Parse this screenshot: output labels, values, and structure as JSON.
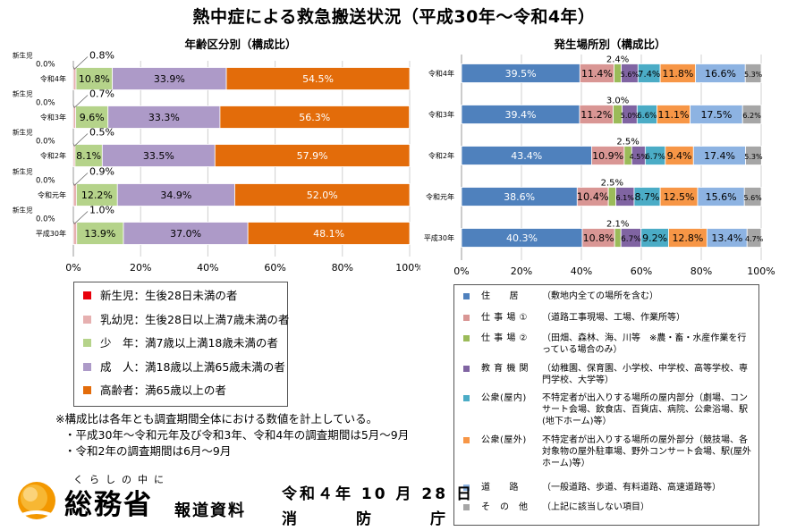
{
  "title": "熱中症による救急搬送状況（平成30年～令和4年）",
  "colors": {
    "newborn": "#e8000b",
    "infant": "#e6b0b0",
    "youth": "#b5d38a",
    "adult": "#ad9ac8",
    "elderly": "#e36c0a",
    "residence": "#4f81bd",
    "work1": "#d99694",
    "work2": "#9bbb59",
    "education": "#8064a2",
    "public_indoor": "#4bacc6",
    "public_outdoor": "#f79646",
    "road": "#8db3e2",
    "other": "#a6a6a6"
  },
  "chart_data": [
    {
      "type": "bar",
      "orientation": "horizontal-stacked",
      "title": "年齢区分別（構成比）",
      "categories": [
        "令和4年",
        "令和3年",
        "令和2年",
        "令和元年",
        "平成30年"
      ],
      "series": [
        {
          "name": "新生児",
          "values": [
            0.0,
            0.0,
            0.0,
            0.0,
            0.0
          ],
          "labels": [
            "0.0%",
            "0.0%",
            "0.0%",
            "0.0%",
            "0.0%"
          ],
          "color_key": "newborn"
        },
        {
          "name": "乳幼児",
          "values": [
            0.8,
            0.7,
            0.5,
            0.9,
            1.0
          ],
          "labels": [
            "0.8%",
            "0.7%",
            "0.5%",
            "0.9%",
            "1.0%"
          ],
          "color_key": "infant"
        },
        {
          "name": "少年",
          "values": [
            10.8,
            9.6,
            8.1,
            12.2,
            13.9
          ],
          "labels": [
            "10.8%",
            "9.6%",
            "8.1%",
            "12.2%",
            "13.9%"
          ],
          "color_key": "youth"
        },
        {
          "name": "成人",
          "values": [
            33.9,
            33.3,
            33.5,
            34.9,
            37.0
          ],
          "labels": [
            "33.9%",
            "33.3%",
            "33.5%",
            "34.9%",
            "37.0%"
          ],
          "color_key": "adult"
        },
        {
          "name": "高齢者",
          "values": [
            54.5,
            56.3,
            57.9,
            52.0,
            48.1
          ],
          "labels": [
            "54.5%",
            "56.3%",
            "57.9%",
            "52.0%",
            "48.1%"
          ],
          "color_key": "elderly"
        }
      ],
      "callout_label": "新生児",
      "xlim": [
        0,
        100
      ],
      "xticks": [
        "0%",
        "20%",
        "40%",
        "60%",
        "80%",
        "100%"
      ]
    },
    {
      "type": "bar",
      "orientation": "horizontal-stacked",
      "title": "発生場所別（構成比）",
      "categories": [
        "令和4年",
        "令和3年",
        "令和2年",
        "令和元年",
        "平成30年"
      ],
      "series": [
        {
          "name": "住居",
          "values": [
            39.5,
            39.4,
            43.4,
            38.6,
            40.3
          ],
          "labels": [
            "39.5%",
            "39.4%",
            "43.4%",
            "38.6%",
            "40.3%"
          ],
          "color_key": "residence"
        },
        {
          "name": "仕事場①",
          "values": [
            11.4,
            11.2,
            10.9,
            10.4,
            10.8
          ],
          "labels": [
            "11.4%",
            "11.2%",
            "10.9%",
            "10.4%",
            "10.8%"
          ],
          "color_key": "work1"
        },
        {
          "name": "仕事場②",
          "values": [
            2.4,
            3.0,
            2.5,
            2.5,
            2.1
          ],
          "labels": [
            "2.4%",
            "3.0%",
            "2.5%",
            "2.5%",
            "2.1%"
          ],
          "color_key": "work2"
        },
        {
          "name": "教育機関",
          "values": [
            5.6,
            5.0,
            4.5,
            6.1,
            6.7
          ],
          "labels": [
            "5.6%",
            "5.0%",
            "4.5%",
            "6.1%",
            "6.7%"
          ],
          "color_key": "education"
        },
        {
          "name": "公衆（屋内）",
          "values": [
            7.4,
            6.6,
            6.7,
            8.7,
            9.2
          ],
          "labels": [
            "7.4%",
            "6.6%",
            "6.7%",
            "8.7%",
            "9.2%"
          ],
          "color_key": "public_indoor"
        },
        {
          "name": "公衆（屋外）",
          "values": [
            11.8,
            11.1,
            9.4,
            12.5,
            12.8
          ],
          "labels": [
            "11.8%",
            "11.1%",
            "9.4%",
            "12.5%",
            "12.8%"
          ],
          "color_key": "public_outdoor"
        },
        {
          "name": "道路",
          "values": [
            16.6,
            17.5,
            17.4,
            15.6,
            13.4
          ],
          "labels": [
            "16.6%",
            "17.5%",
            "17.4%",
            "15.6%",
            "13.4%"
          ],
          "color_key": "road"
        },
        {
          "name": "その他",
          "values": [
            5.3,
            6.2,
            5.3,
            5.6,
            4.7
          ],
          "labels": [
            "5.3%",
            "6.2%",
            "5.3%",
            "5.6%",
            "4.7%"
          ],
          "color_key": "other"
        }
      ],
      "xlim": [
        0,
        100
      ],
      "xticks": [
        "0%",
        "20%",
        "40%",
        "60%",
        "80%",
        "100%"
      ]
    }
  ],
  "legend_age": [
    {
      "label": "新生児：生後28日未満の者",
      "color_key": "newborn"
    },
    {
      "label": "乳幼児：生後28日以上満7歳未満の者",
      "color_key": "infant"
    },
    {
      "label": "少　年：満7歳以上満18歳未満の者",
      "color_key": "youth"
    },
    {
      "label": "成　人：満18歳以上満65歳未満の者",
      "color_key": "adult"
    },
    {
      "label": "高齢者：満65歳以上の者",
      "color_key": "elderly"
    }
  ],
  "legend_place": [
    {
      "name": "住　　居",
      "desc": "（敷地内全ての場所を含む）",
      "color_key": "residence"
    },
    {
      "name": "仕 事 場 ①",
      "desc": "（道路工事現場、工場、作業所等）",
      "color_key": "work1"
    },
    {
      "name": "仕 事 場 ②",
      "desc": "（田畑、森林、海、川等　※農・畜・水産作業を行っている場合のみ）",
      "color_key": "work2"
    },
    {
      "name": "教 育 機 関",
      "desc": "（幼稚園、保育園、小学校、中学校、高等学校、専門学校、大学等）",
      "color_key": "education"
    },
    {
      "name": "公衆(屋内)",
      "desc": "不特定者が出入りする場所の屋内部分（劇場、コンサート会場、飲食店、百貨店、病院、公衆浴場、駅(地下ホーム)等）",
      "color_key": "public_indoor"
    },
    {
      "name": "公衆(屋外)",
      "desc": "不特定者が出入りする場所の屋外部分（競技場、各対象物の屋外駐車場、野外コンサート会場、駅(屋外ホーム)等）",
      "color_key": "public_outdoor"
    },
    {
      "name": "道　　路",
      "desc": "（一般道路、歩道、有料道路、高速道路等）",
      "color_key": "road"
    },
    {
      "name": "そ　の　他",
      "desc": "（上記に該当しない項目）",
      "color_key": "other"
    }
  ],
  "notes": {
    "main": "※構成比は各年とも調査期間全体における数値を計上している。",
    "line1": "・平成30年～令和元年及び令和3年、令和4年の調査期間は5月～9月",
    "line2": "・令和2年の調査期間は6月～9月"
  },
  "footer": {
    "tagline": "くらしの中に",
    "org": "総務省",
    "doc_type": "報道資料",
    "date": "令和４年 10 月 28 日",
    "issuer": [
      "消",
      "防",
      "庁"
    ]
  }
}
